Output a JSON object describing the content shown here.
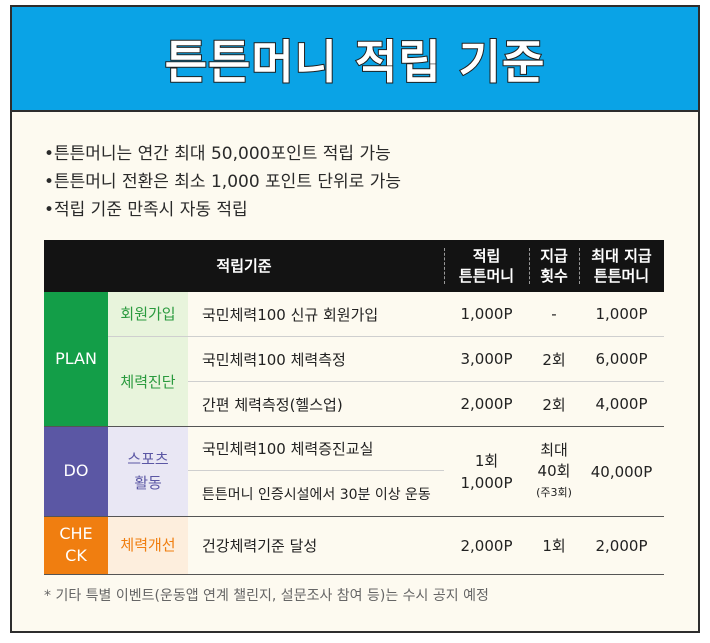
{
  "title": "튼튼머니 적립 기준",
  "bullets": [
    "튼튼머니는 연간 최대 50,000포인트 적립 가능",
    "튼튼머니 전환은 최소 1,000 포인트 단위로 가능",
    "적립 기준 만족시 자동 적립"
  ],
  "bullet_mark": "•",
  "table": {
    "headers": {
      "criteria": "적립기준",
      "earn_line1": "적립",
      "earn_line2": "튼튼머니",
      "count_line1": "지급",
      "count_line2": "횟수",
      "max_line1": "최대 지급",
      "max_line2": "튼튼머니"
    },
    "categories": {
      "plan": "PLAN",
      "do": "DO",
      "check_line1": "CHE",
      "check_line2": "CK"
    },
    "subcategories": {
      "signup": "회원가입",
      "fitness_test": "체력진단",
      "sports_line1": "스포츠",
      "sports_line2": "활동",
      "improve": "체력개선"
    },
    "rows": [
      {
        "criteria": "국민체력100 신규 회원가입",
        "earn": "1,000P",
        "count": "-",
        "max": "1,000P"
      },
      {
        "criteria": "국민체력100 체력측정",
        "earn": "3,000P",
        "count": "2회",
        "max": "6,000P"
      },
      {
        "criteria": "간편 체력측정(헬스업)",
        "earn": "2,000P",
        "count": "2회",
        "max": "4,000P"
      },
      {
        "criteria": "국민체력100 체력증진교실"
      },
      {
        "criteria": "튼튼머니 인증시설에서 30분 이상 운동"
      },
      {
        "criteria": "건강체력기준 달성",
        "earn": "2,000P",
        "count": "1회",
        "max": "2,000P"
      }
    ],
    "do_earn_line1": "1회",
    "do_earn_line2": "1,000P",
    "do_count_line1": "최대",
    "do_count_line2": "40회",
    "do_count_line3": "(주3회)",
    "do_max": "40,000P"
  },
  "footnote": "* 기타 특별 이벤트(운동앱 연계 챌린지, 설문조사 참여 등)는 수시 공지 예정",
  "colors": {
    "header_bg": "#0aa3e6",
    "plan": "#139e48",
    "plan_text": "#2a9a3e",
    "plan_sub_bg": "#e8f4dc",
    "do": "#5b57a4",
    "do_text": "#5b57a4",
    "do_sub_bg": "#e9e7f4",
    "check": "#f07e10",
    "check_text": "#f07e10",
    "check_sub_bg": "#fdeedd"
  }
}
